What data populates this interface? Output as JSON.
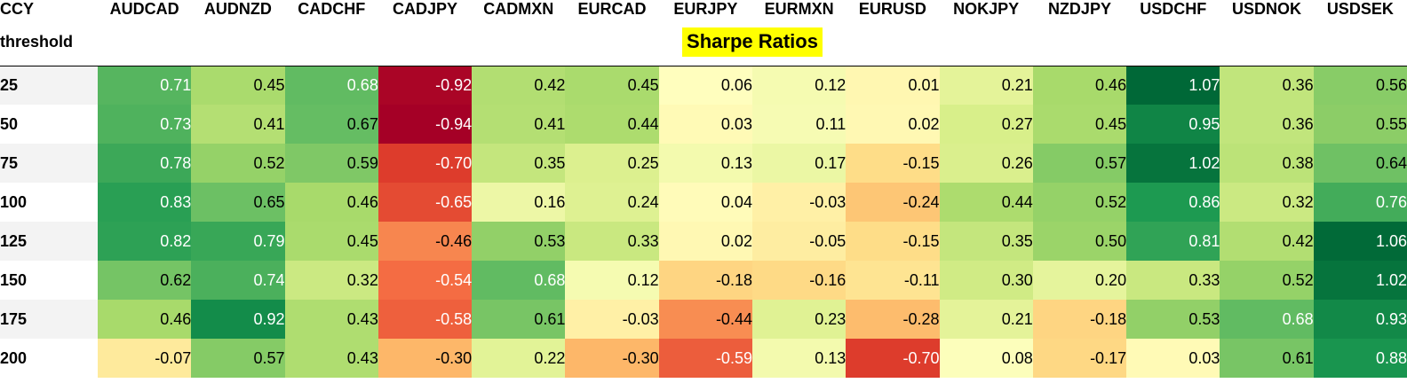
{
  "header": {
    "index_label": "CCY",
    "row_index_label": "threshold",
    "title": "Sharpe Ratios"
  },
  "chart_data": {
    "type": "heatmap",
    "title": "Sharpe Ratios",
    "columns": [
      "AUDCAD",
      "AUDNZD",
      "CADCHF",
      "CADJPY",
      "CADMXN",
      "EURCAD",
      "EURJPY",
      "EURMXN",
      "EURUSD",
      "NOKJPY",
      "NZDJPY",
      "USDCHF",
      "USDNOK",
      "USDSEK"
    ],
    "rows": [
      {
        "threshold": "25",
        "values": [
          "0.71",
          "0.45",
          "0.68",
          "-0.92",
          "0.42",
          "0.45",
          "0.06",
          "0.12",
          "0.01",
          "0.21",
          "0.46",
          "1.07",
          "0.36",
          "0.56"
        ]
      },
      {
        "threshold": "50",
        "values": [
          "0.73",
          "0.41",
          "0.67",
          "-0.94",
          "0.41",
          "0.44",
          "0.03",
          "0.11",
          "0.02",
          "0.27",
          "0.45",
          "0.95",
          "0.36",
          "0.55"
        ]
      },
      {
        "threshold": "75",
        "values": [
          "0.78",
          "0.52",
          "0.59",
          "-0.70",
          "0.35",
          "0.25",
          "0.13",
          "0.17",
          "-0.15",
          "0.26",
          "0.57",
          "1.02",
          "0.38",
          "0.64"
        ]
      },
      {
        "threshold": "100",
        "values": [
          "0.83",
          "0.65",
          "0.46",
          "-0.65",
          "0.16",
          "0.24",
          "0.04",
          "-0.03",
          "-0.24",
          "0.44",
          "0.52",
          "0.86",
          "0.32",
          "0.76"
        ]
      },
      {
        "threshold": "125",
        "values": [
          "0.82",
          "0.79",
          "0.45",
          "-0.46",
          "0.53",
          "0.33",
          "0.02",
          "-0.05",
          "-0.15",
          "0.35",
          "0.50",
          "0.81",
          "0.42",
          "1.06"
        ]
      },
      {
        "threshold": "150",
        "values": [
          "0.62",
          "0.74",
          "0.32",
          "-0.54",
          "0.68",
          "0.12",
          "-0.18",
          "-0.16",
          "-0.11",
          "0.30",
          "0.20",
          "0.33",
          "0.52",
          "1.02"
        ]
      },
      {
        "threshold": "175",
        "values": [
          "0.46",
          "0.92",
          "0.43",
          "-0.58",
          "0.61",
          "-0.03",
          "-0.44",
          "0.23",
          "-0.28",
          "0.21",
          "-0.18",
          "0.53",
          "0.68",
          "0.93"
        ]
      },
      {
        "threshold": "200",
        "values": [
          "-0.07",
          "0.57",
          "0.43",
          "-0.30",
          "0.22",
          "-0.30",
          "-0.59",
          "0.13",
          "-0.70",
          "0.08",
          "-0.17",
          "0.03",
          "0.61",
          "0.88"
        ]
      }
    ],
    "color_scale": {
      "name": "RdYlGn",
      "vmin": -0.94,
      "vmax": 1.07,
      "stops": [
        "#a50026",
        "#d73027",
        "#f46d43",
        "#fdae61",
        "#fee08b",
        "#ffffbf",
        "#d9ef8b",
        "#a6d96a",
        "#66bd63",
        "#1a9850",
        "#006837"
      ]
    }
  }
}
